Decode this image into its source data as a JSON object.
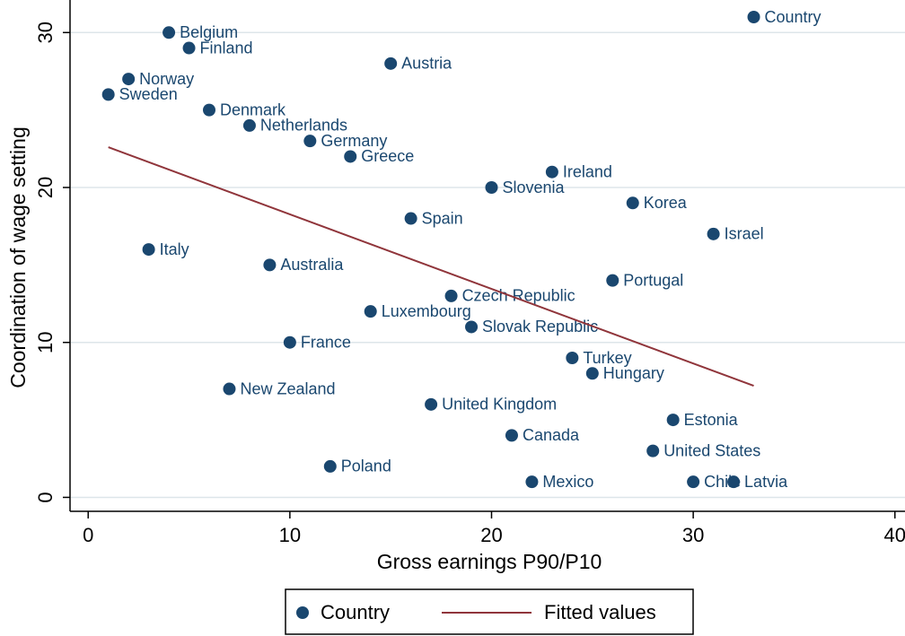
{
  "chart_data": {
    "type": "scatter",
    "x_label": "Gross earnings P90/P10",
    "y_label": "Coordination of wage setting",
    "xlim": [
      -0.9,
      40.5
    ],
    "ylim": [
      -0.9,
      32.1
    ],
    "xticks": [
      0,
      10,
      20,
      30,
      40
    ],
    "yticks": [
      0,
      10,
      20,
      30
    ],
    "grid": true,
    "legend": "bottom",
    "series": [
      {
        "name": "Country",
        "color": "#1a476f",
        "point_labels": [
          "Country",
          "Belgium",
          "Finland",
          "Austria",
          "Norway",
          "Sweden",
          "Denmark",
          "Netherlands",
          "Germany",
          "Greece",
          "Ireland",
          "Slovenia",
          "Korea",
          "Spain",
          "Israel",
          "Italy",
          "Australia",
          "Portugal",
          "Czech Republic",
          "Luxembourg",
          "Slovak Republic",
          "France",
          "Turkey",
          "Hungary",
          "New Zealand",
          "United Kingdom",
          "Estonia",
          "Canada",
          "United States",
          "Poland",
          "Mexico",
          "Chile",
          "Latvia"
        ],
        "x": [
          33,
          4,
          5,
          15,
          2,
          1,
          6,
          8,
          11,
          13,
          23,
          20,
          27,
          16,
          31,
          3,
          9,
          26,
          18,
          14,
          19,
          10,
          24,
          25,
          7,
          17,
          29,
          21,
          28,
          12,
          22,
          30,
          32
        ],
        "values": [
          31,
          30,
          29,
          28,
          27,
          26,
          25,
          24,
          23,
          22,
          21,
          20,
          19,
          18,
          17,
          16,
          15,
          14,
          13,
          12,
          11,
          10,
          9,
          8,
          7,
          6,
          5,
          4,
          3,
          2,
          1,
          1,
          1
        ]
      },
      {
        "name": "Fitted values",
        "color": "#90353b",
        "x": [
          1,
          33
        ],
        "values": [
          22.6,
          7.2
        ]
      }
    ]
  }
}
